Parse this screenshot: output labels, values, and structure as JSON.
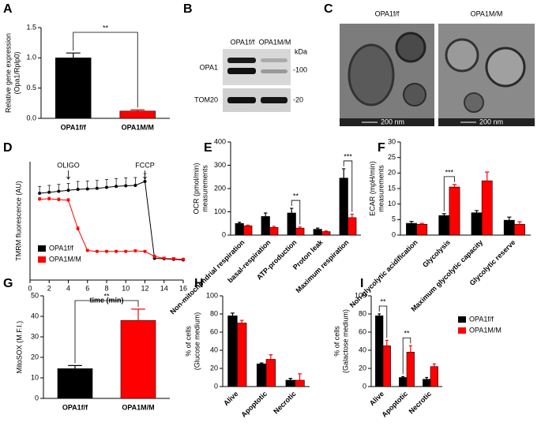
{
  "panels": [
    "A",
    "B",
    "C",
    "D",
    "E",
    "F",
    "G",
    "H",
    "I"
  ],
  "blot": {
    "lanes": [
      "OPA1f/f",
      "OPA1M/M"
    ],
    "unit": "kDa",
    "proteins": [
      "OPA1",
      "TOM20"
    ],
    "markers": [
      "-100",
      "-20"
    ]
  },
  "em": {
    "labels": [
      "OPA1f/f",
      "OPA1M/M"
    ],
    "scale": [
      "200 nm",
      "200 nm"
    ]
  },
  "chart_data": [
    {
      "type": "bar",
      "ylabel": [
        "Relative gene expression",
        "(Opa1/Rplp0)"
      ],
      "categories": [
        "OPA1f/f",
        "OPA1M/M"
      ],
      "values": [
        1.0,
        0.12
      ],
      "errors": [
        0.08,
        0.02
      ],
      "colors": [
        "#000000",
        "#ff0000"
      ],
      "ylim": [
        0,
        1.5
      ],
      "yticks": [
        {
          "value": 0,
          "label": "0.0"
        },
        0.5,
        {
          "value": 1,
          "label": "1.0"
        },
        1.5
      ],
      "annotations": [
        "**"
      ]
    },
    {
      "type": "line",
      "ylabel": [
        "TMRM fluorescence (AU)"
      ],
      "xlabel": "time (min)",
      "x": [
        1,
        2,
        3,
        4,
        5,
        6,
        7,
        8,
        9,
        10,
        11,
        12,
        13,
        14,
        15,
        16
      ],
      "series": [
        {
          "name": "OPA1f/f",
          "color": "#000000",
          "values": [
            440,
            445,
            450,
            455,
            460,
            462,
            465,
            470,
            475,
            478,
            480,
            500,
            110,
            108,
            105,
            102
          ],
          "errors": [
            35,
            35,
            35,
            35,
            40,
            40,
            40,
            40,
            40,
            40,
            40,
            40,
            8,
            8,
            8,
            8
          ]
        },
        {
          "name": "OPA1M/M",
          "color": "#ff0000",
          "values": [
            410,
            412,
            408,
            405,
            260,
            150,
            145,
            145,
            145,
            145,
            148,
            145,
            120,
            110,
            108,
            105
          ],
          "errors": [
            8,
            8,
            8,
            8,
            10,
            6,
            6,
            6,
            6,
            6,
            6,
            6,
            6,
            6,
            6,
            6
          ]
        }
      ],
      "xlim": [
        0,
        16
      ],
      "xticks": [
        0,
        2,
        4,
        6,
        8,
        10,
        12,
        14,
        16
      ],
      "ylim": [
        0,
        600
      ],
      "legend": "lower left",
      "annotations": [
        {
          "text": "OLIGO",
          "x": 4
        },
        {
          "text": "FCCP",
          "x": 12
        }
      ]
    },
    {
      "type": "bar",
      "ylabel": [
        "OCR (pmol/min)",
        "measurements"
      ],
      "categories": [
        "Non-mitochondrial respiration",
        "basal-respiration",
        "ATP-production",
        "Proton leak",
        "Maximum respiration"
      ],
      "series": [
        {
          "color": "#000000",
          "values": [
            50,
            80,
            95,
            25,
            245
          ],
          "errors": [
            5,
            15,
            20,
            5,
            40
          ]
        },
        {
          "color": "#ff0000",
          "values": [
            40,
            33,
            30,
            15,
            75
          ],
          "errors": [
            3,
            5,
            5,
            3,
            15
          ]
        }
      ],
      "ylim": [
        0,
        400
      ],
      "yticks": [
        0,
        100,
        200,
        300,
        400
      ],
      "annotations": [
        "**",
        "***"
      ]
    },
    {
      "type": "bar",
      "ylabel": [
        "ECAR (mpH/min)",
        "measurements"
      ],
      "categories": [
        "Non-glycolytic acidification",
        "Glycolysis",
        "Maximum glycolytic capacity",
        "Glycolytic reserve"
      ],
      "series": [
        {
          "color": "#000000",
          "values": [
            3.8,
            6.3,
            7.2,
            4.8
          ],
          "errors": [
            0.6,
            0.6,
            0.7,
            1.0
          ]
        },
        {
          "color": "#ff0000",
          "values": [
            3.5,
            15.5,
            17.5,
            3.5
          ],
          "errors": [
            0.3,
            0.8,
            2.8,
            0.8
          ]
        }
      ],
      "ylim": [
        0,
        30
      ],
      "yticks": [
        0,
        5,
        10,
        15,
        20,
        25,
        30
      ],
      "annotations": [
        "***"
      ]
    },
    {
      "type": "bar",
      "ylabel": [
        "MitoSOX (M.F.I.)"
      ],
      "categories": [
        "OPA1f/f",
        "OPA1M/M"
      ],
      "values": [
        14.5,
        38
      ],
      "errors": [
        1.5,
        5.5
      ],
      "colors": [
        "#000000",
        "#ff0000"
      ],
      "ylim": [
        0,
        50
      ],
      "yticks": [
        0,
        10,
        20,
        30,
        40,
        50
      ],
      "annotations": [
        "**"
      ]
    },
    {
      "type": "bar",
      "ylabel": [
        "% of cells",
        "(Glucose medium)"
      ],
      "categories": [
        "Alive",
        "Apoptotic",
        "Necrotic"
      ],
      "series": [
        {
          "color": "#000000",
          "values": [
            78,
            25,
            7
          ],
          "errors": [
            3,
            1,
            2
          ]
        },
        {
          "color": "#ff0000",
          "values": [
            70,
            30,
            7
          ],
          "errors": [
            3,
            5,
            7
          ]
        }
      ],
      "ylim": [
        0,
        100
      ],
      "yticks": [
        0,
        20,
        40,
        60,
        80,
        100
      ]
    },
    {
      "type": "bar",
      "ylabel": [
        "% of cells",
        "(Galactose medium)"
      ],
      "categories": [
        "Alive",
        "Apoptotic",
        "Necrotic"
      ],
      "series": [
        {
          "name": "OPA1f/f",
          "color": "#000000",
          "values": [
            78,
            10,
            8
          ],
          "errors": [
            2,
            1,
            2
          ]
        },
        {
          "name": "OPA1M/M",
          "color": "#ff0000",
          "values": [
            45,
            38,
            22
          ],
          "errors": [
            6,
            7,
            3
          ]
        }
      ],
      "ylim": [
        0,
        100
      ],
      "yticks": [
        0,
        20,
        40,
        60,
        80,
        100
      ],
      "legend": "right",
      "annotations": [
        "**",
        "**"
      ]
    }
  ]
}
